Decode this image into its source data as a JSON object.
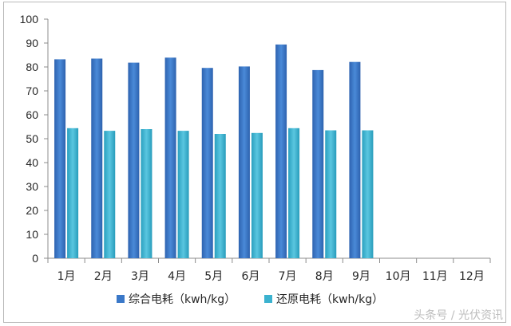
{
  "chart_data": {
    "type": "bar",
    "title": "",
    "xlabel": "",
    "ylabel": "",
    "ylim": [
      0,
      100
    ],
    "yticks": [
      "0",
      "10",
      "20",
      "30",
      "40",
      "50",
      "60",
      "70",
      "80",
      "90",
      "100"
    ],
    "categories": [
      "1月",
      "2月",
      "3月",
      "4月",
      "5月",
      "6月",
      "7月",
      "8月",
      "9月",
      "10月",
      "11月",
      "12月"
    ],
    "series": [
      {
        "name": "综合电耗（kwh/kg）",
        "color": "#3a78c8",
        "values": [
          83.2,
          83.5,
          81.8,
          83.9,
          79.6,
          80.2,
          89.4,
          78.7,
          82.1,
          null,
          null,
          null
        ]
      },
      {
        "name": "还原电耗（kwh/kg）",
        "color": "#3bb2cf",
        "values": [
          54.4,
          53.3,
          54.0,
          53.3,
          52.0,
          52.4,
          54.4,
          53.5,
          53.5,
          null,
          null,
          null
        ]
      }
    ],
    "grid": false,
    "legend_position": "bottom"
  },
  "watermark": "头条号 / 光伏资讯"
}
